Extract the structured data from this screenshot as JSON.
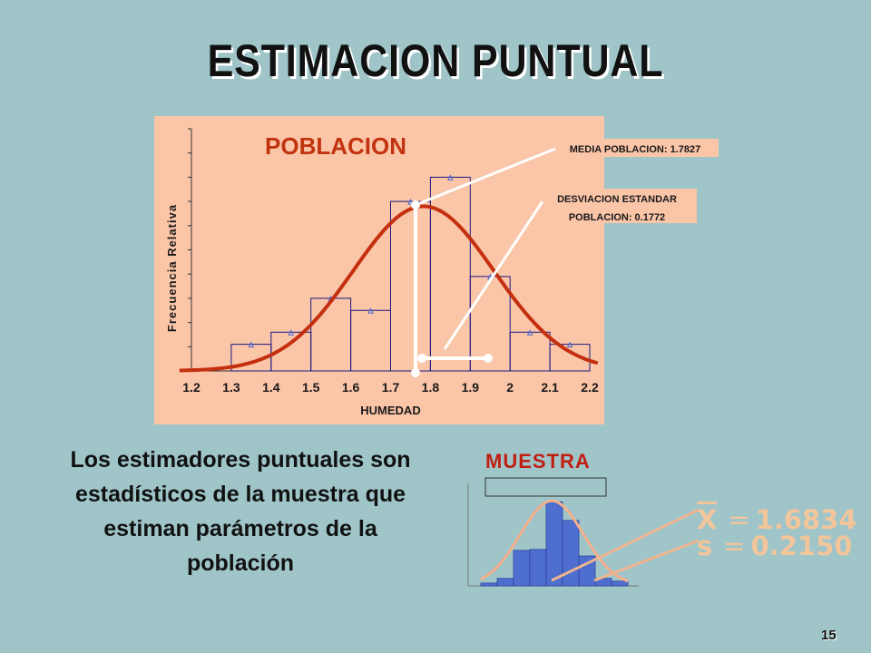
{
  "title": "ESTIMACION PUNTUAL",
  "explanation": "Los estimadores puntuales son estadísticos de la muestra que estiman parámetros de la población",
  "page_number": "15",
  "sample": {
    "title": "MUESTRA",
    "mean_symbol": "X",
    "mean_value": "1.6834",
    "sd_symbol": "s",
    "sd_value": "0.2150"
  },
  "chart_data": [
    {
      "type": "bar",
      "title": "POBLACION",
      "xlabel": "HUMEDAD",
      "ylabel": "Frecuencia Relativa",
      "tick_labels": [
        "1.2",
        "1.3",
        "1.4",
        "1.5",
        "1.6",
        "1.7",
        "1.8",
        "1.9",
        "2",
        "2.1",
        "2.2"
      ],
      "bin_edges": [
        1.2,
        1.3,
        1.4,
        1.5,
        1.6,
        1.7,
        1.8,
        1.9,
        2.0,
        2.1,
        2.2
      ],
      "values": [
        0,
        0.11,
        0.16,
        0.3,
        0.25,
        0.7,
        0.8,
        0.39,
        0.16,
        0.11
      ],
      "ylim": [
        0,
        1
      ],
      "curve": {
        "type": "normal",
        "mean": 1.7827,
        "sd": 0.1772,
        "peak": 0.68
      },
      "annotations": [
        {
          "text": "MEDIA POBLACION: 1.7827"
        },
        {
          "text": "DESVIACION ESTANDAR POBLACION: 0.1772"
        }
      ],
      "colors": {
        "background": "#fbc5a8",
        "curve": "#c4300f",
        "bars": "#1a1a80"
      }
    },
    {
      "type": "bar",
      "title": "MUESTRA",
      "values": [
        0.03,
        0.08,
        0.38,
        0.39,
        0.9,
        0.7,
        0.32,
        0.08,
        0.05
      ],
      "ylim": [
        0,
        1
      ],
      "curve": {
        "type": "normal",
        "mean": 1.6834,
        "sd": 0.215,
        "peak": 0.7
      },
      "colors": {
        "bars": "#4e6fd0",
        "curve": "#f4b08c"
      }
    }
  ]
}
